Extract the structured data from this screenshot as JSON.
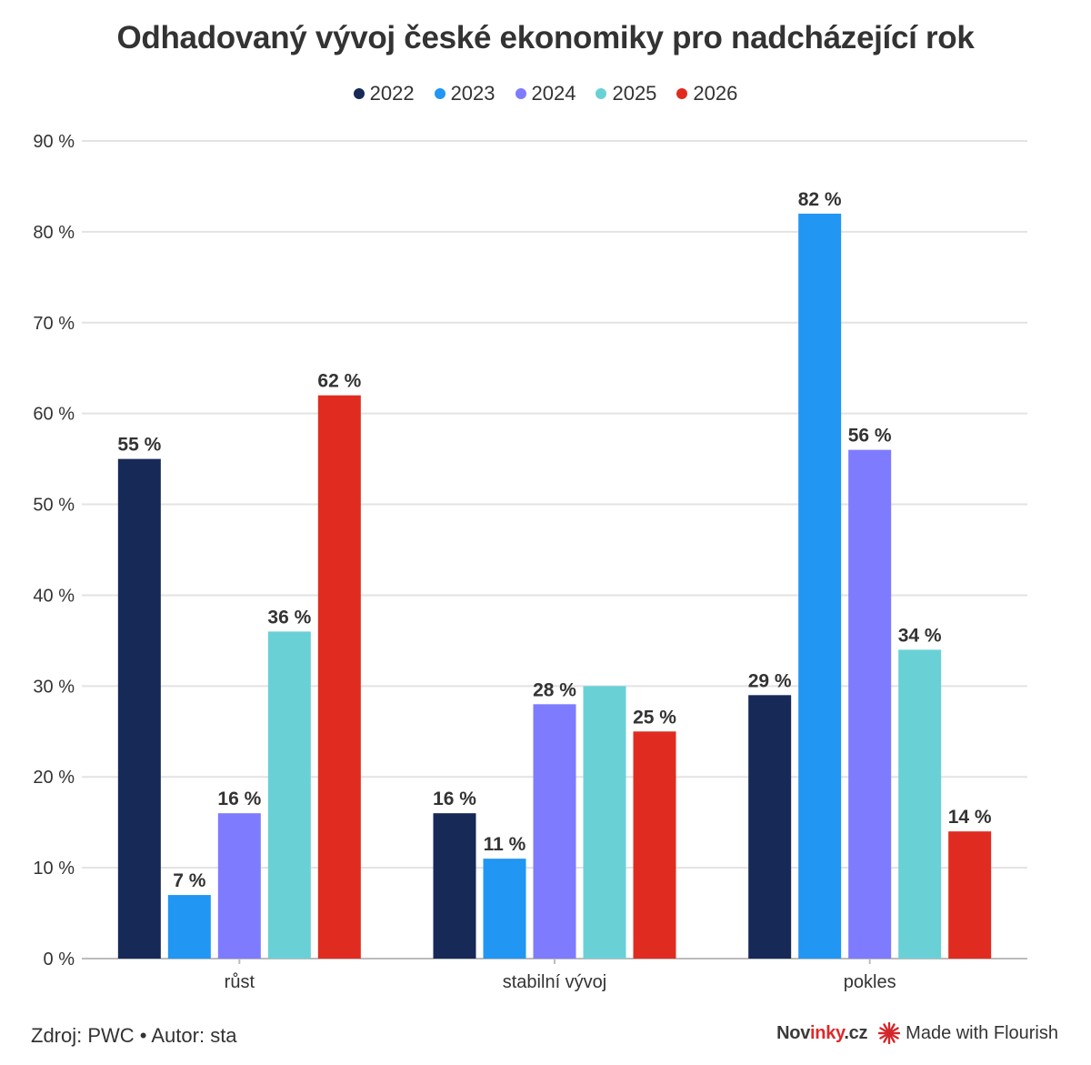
{
  "chart_data": {
    "type": "bar",
    "title": "Odhadovaný vývoj české ekonomiky pro nadcházející rok",
    "categories": [
      "růst",
      "stabilní vývoj",
      "pokles"
    ],
    "series": [
      {
        "name": "2022",
        "color": "#172957",
        "values": [
          55,
          16,
          29
        ],
        "labels": [
          "55 %",
          "16 %",
          "29 %"
        ]
      },
      {
        "name": "2023",
        "color": "#2196f3",
        "values": [
          7,
          11,
          82
        ],
        "labels": [
          "7 %",
          "11 %",
          "82 %"
        ]
      },
      {
        "name": "2024",
        "color": "#7e7bff",
        "values": [
          16,
          28,
          56
        ],
        "labels": [
          "16 %",
          "28 %",
          "56 %"
        ]
      },
      {
        "name": "2025",
        "color": "#69d1d6",
        "values": [
          36,
          30,
          34
        ],
        "labels": [
          "36 %",
          "",
          "34 %"
        ]
      },
      {
        "name": "2026",
        "color": "#e02c20",
        "values": [
          62,
          25,
          14
        ],
        "labels": [
          "62 %",
          "25 %",
          "14 %"
        ]
      }
    ],
    "ylim": [
      0,
      90
    ],
    "yticks": [
      0,
      10,
      20,
      30,
      40,
      50,
      60,
      70,
      80,
      90
    ],
    "ytick_labels": [
      "0 %",
      "10 %",
      "20 %",
      "30 %",
      "40 %",
      "50 %",
      "60 %",
      "70 %",
      "80 %",
      "90 %"
    ],
    "xlabel": "",
    "ylabel": "",
    "grid": true,
    "legend_position": "top-center"
  },
  "footer": {
    "source_text": "Zdroj: PWC • Autor: sta",
    "brand_part1": "Nov",
    "brand_part2": "inky",
    "brand_part3": ".cz",
    "flourish_text": "Made with Flourish"
  },
  "icons": {
    "flourish": "flourish-star-icon"
  }
}
